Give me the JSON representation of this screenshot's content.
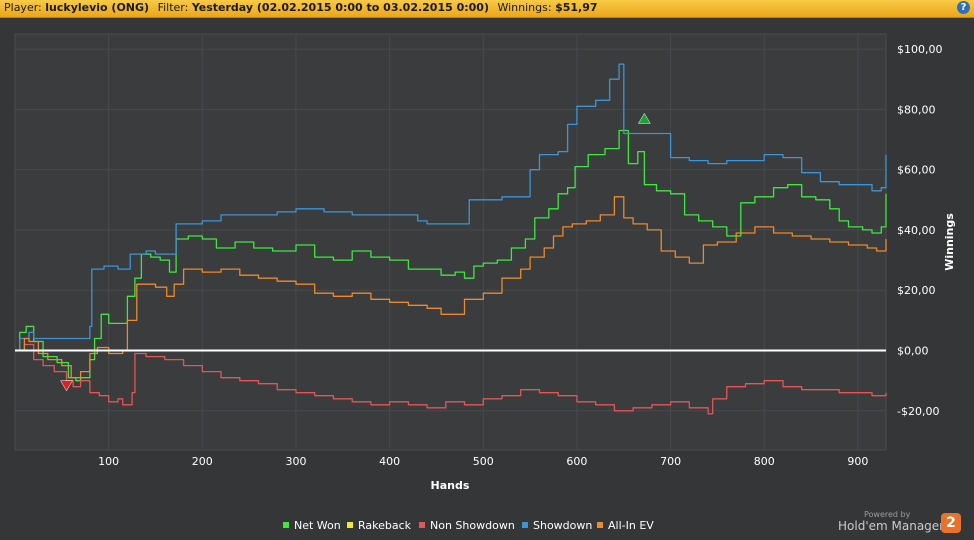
{
  "header": {
    "player_label": "Player:",
    "player_value": "luckylevio (ONG)",
    "filter_label": "Filter:",
    "filter_value": "Yesterday (02.02.2015 0:00 to 03.02.2015 0:00)",
    "winnings_label": "Winnings:",
    "winnings_value": "$51,97",
    "help_glyph": "?"
  },
  "footer": {
    "powered_by": "Powered by",
    "brand": "Hold'em Manager",
    "badge": "2"
  },
  "chart_data": {
    "type": "line",
    "xlabel": "Hands",
    "ylabel": "Winnings",
    "xlim": [
      0,
      930
    ],
    "ylim": [
      -33,
      105
    ],
    "x_ticks": [
      100,
      200,
      300,
      400,
      500,
      600,
      700,
      800,
      900
    ],
    "y_ticks": [
      {
        "value": -20,
        "label": "-$20,00"
      },
      {
        "value": 0,
        "label": "$0,00"
      },
      {
        "value": 20,
        "label": "$20,00"
      },
      {
        "value": 40,
        "label": "$40,00"
      },
      {
        "value": 60,
        "label": "$60,00"
      },
      {
        "value": 80,
        "label": "$80,00"
      },
      {
        "value": 100,
        "label": "$100,00"
      }
    ],
    "grid": true,
    "legend_position": "bottom-center",
    "series": [
      {
        "name": "Net Won",
        "color": "#3fe83f",
        "points": [
          [
            0,
            0
          ],
          [
            5,
            6
          ],
          [
            12,
            8
          ],
          [
            20,
            3
          ],
          [
            30,
            -2
          ],
          [
            45,
            -4
          ],
          [
            57,
            -9
          ],
          [
            65,
            -10
          ],
          [
            70,
            -9
          ],
          [
            80,
            -3
          ],
          [
            85,
            4
          ],
          [
            92,
            12
          ],
          [
            100,
            9
          ],
          [
            110,
            9
          ],
          [
            120,
            18
          ],
          [
            128,
            24
          ],
          [
            135,
            32
          ],
          [
            145,
            31
          ],
          [
            155,
            30
          ],
          [
            165,
            26
          ],
          [
            172,
            37
          ],
          [
            185,
            38
          ],
          [
            200,
            37
          ],
          [
            215,
            34
          ],
          [
            235,
            36
          ],
          [
            255,
            34
          ],
          [
            275,
            33
          ],
          [
            300,
            35
          ],
          [
            320,
            31
          ],
          [
            340,
            30
          ],
          [
            360,
            33
          ],
          [
            380,
            31
          ],
          [
            400,
            30
          ],
          [
            420,
            27
          ],
          [
            440,
            27
          ],
          [
            455,
            25
          ],
          [
            470,
            26
          ],
          [
            480,
            24
          ],
          [
            490,
            28
          ],
          [
            500,
            29
          ],
          [
            515,
            30
          ],
          [
            530,
            34
          ],
          [
            545,
            37
          ],
          [
            555,
            44
          ],
          [
            570,
            47
          ],
          [
            580,
            52
          ],
          [
            590,
            54
          ],
          [
            598,
            61
          ],
          [
            612,
            65
          ],
          [
            630,
            67
          ],
          [
            645,
            73
          ],
          [
            655,
            62
          ],
          [
            665,
            66
          ],
          [
            672,
            55
          ],
          [
            685,
            53
          ],
          [
            700,
            52
          ],
          [
            715,
            45
          ],
          [
            730,
            43
          ],
          [
            745,
            41
          ],
          [
            760,
            38
          ],
          [
            775,
            49
          ],
          [
            790,
            51
          ],
          [
            810,
            54
          ],
          [
            825,
            55
          ],
          [
            840,
            51
          ],
          [
            855,
            50
          ],
          [
            870,
            47
          ],
          [
            880,
            43
          ],
          [
            890,
            41
          ],
          [
            905,
            40
          ],
          [
            915,
            39
          ],
          [
            925,
            41
          ],
          [
            930,
            52
          ]
        ]
      },
      {
        "name": "Rakeback",
        "color": "#f0ea2a",
        "points": []
      },
      {
        "name": "Non Showdown",
        "color": "#e25658",
        "points": [
          [
            0,
            0
          ],
          [
            10,
            2
          ],
          [
            20,
            -3
          ],
          [
            30,
            -5
          ],
          [
            42,
            -7
          ],
          [
            55,
            -10
          ],
          [
            62,
            -12
          ],
          [
            70,
            -10
          ],
          [
            80,
            -14
          ],
          [
            90,
            -15
          ],
          [
            100,
            -17
          ],
          [
            110,
            -16
          ],
          [
            115,
            -18
          ],
          [
            125,
            -14
          ],
          [
            128,
            -1
          ],
          [
            140,
            -2
          ],
          [
            160,
            -3
          ],
          [
            180,
            -5
          ],
          [
            200,
            -7
          ],
          [
            220,
            -9
          ],
          [
            240,
            -10
          ],
          [
            260,
            -11
          ],
          [
            280,
            -13
          ],
          [
            300,
            -14
          ],
          [
            320,
            -15
          ],
          [
            340,
            -16
          ],
          [
            360,
            -17
          ],
          [
            380,
            -18
          ],
          [
            400,
            -17
          ],
          [
            420,
            -18
          ],
          [
            440,
            -19
          ],
          [
            460,
            -17
          ],
          [
            480,
            -18
          ],
          [
            500,
            -16
          ],
          [
            520,
            -15
          ],
          [
            540,
            -13
          ],
          [
            560,
            -14
          ],
          [
            580,
            -15
          ],
          [
            600,
            -17
          ],
          [
            620,
            -18
          ],
          [
            640,
            -20
          ],
          [
            660,
            -19
          ],
          [
            680,
            -18
          ],
          [
            700,
            -17
          ],
          [
            720,
            -19
          ],
          [
            740,
            -21
          ],
          [
            745,
            -16
          ],
          [
            760,
            -12
          ],
          [
            780,
            -11
          ],
          [
            800,
            -10
          ],
          [
            820,
            -12
          ],
          [
            840,
            -13
          ],
          [
            860,
            -13
          ],
          [
            880,
            -14
          ],
          [
            900,
            -14
          ],
          [
            915,
            -15
          ],
          [
            930,
            -14
          ]
        ]
      },
      {
        "name": "Showdown",
        "color": "#3d94d6",
        "points": [
          [
            0,
            0
          ],
          [
            5,
            4
          ],
          [
            15,
            6
          ],
          [
            20,
            4
          ],
          [
            40,
            4
          ],
          [
            60,
            4
          ],
          [
            70,
            4
          ],
          [
            80,
            8
          ],
          [
            82,
            27
          ],
          [
            95,
            28
          ],
          [
            110,
            27
          ],
          [
            120,
            27
          ],
          [
            123,
            32
          ],
          [
            140,
            33
          ],
          [
            150,
            32
          ],
          [
            165,
            32
          ],
          [
            172,
            42
          ],
          [
            200,
            43
          ],
          [
            220,
            45
          ],
          [
            250,
            45
          ],
          [
            280,
            46
          ],
          [
            300,
            47
          ],
          [
            330,
            46
          ],
          [
            360,
            45
          ],
          [
            400,
            45
          ],
          [
            430,
            43
          ],
          [
            440,
            42
          ],
          [
            460,
            42
          ],
          [
            480,
            42
          ],
          [
            485,
            50
          ],
          [
            520,
            51
          ],
          [
            540,
            51
          ],
          [
            550,
            60
          ],
          [
            560,
            65
          ],
          [
            580,
            66
          ],
          [
            590,
            75
          ],
          [
            600,
            81
          ],
          [
            610,
            81
          ],
          [
            620,
            83
          ],
          [
            635,
            90
          ],
          [
            645,
            95
          ],
          [
            650,
            72
          ],
          [
            665,
            72
          ],
          [
            690,
            72
          ],
          [
            700,
            64
          ],
          [
            720,
            63
          ],
          [
            740,
            62
          ],
          [
            760,
            63
          ],
          [
            780,
            63
          ],
          [
            800,
            65
          ],
          [
            820,
            64
          ],
          [
            840,
            59
          ],
          [
            860,
            56
          ],
          [
            880,
            55
          ],
          [
            900,
            55
          ],
          [
            915,
            53
          ],
          [
            925,
            54
          ],
          [
            930,
            65
          ]
        ]
      },
      {
        "name": "All-In EV",
        "color": "#ec8a2c",
        "points": [
          [
            0,
            0
          ],
          [
            10,
            4
          ],
          [
            15,
            3
          ],
          [
            25,
            -1
          ],
          [
            35,
            -3
          ],
          [
            50,
            -5
          ],
          [
            60,
            -9
          ],
          [
            70,
            -7
          ],
          [
            80,
            -1
          ],
          [
            88,
            1
          ],
          [
            100,
            -1
          ],
          [
            115,
            0
          ],
          [
            120,
            10
          ],
          [
            130,
            22
          ],
          [
            150,
            21
          ],
          [
            162,
            18
          ],
          [
            170,
            22
          ],
          [
            180,
            27
          ],
          [
            200,
            26
          ],
          [
            220,
            27
          ],
          [
            240,
            25
          ],
          [
            260,
            24
          ],
          [
            280,
            23
          ],
          [
            300,
            22
          ],
          [
            320,
            19
          ],
          [
            340,
            18
          ],
          [
            360,
            19
          ],
          [
            380,
            17
          ],
          [
            400,
            16
          ],
          [
            420,
            15
          ],
          [
            440,
            14
          ],
          [
            455,
            12
          ],
          [
            475,
            12
          ],
          [
            480,
            17
          ],
          [
            500,
            19
          ],
          [
            520,
            24
          ],
          [
            540,
            27
          ],
          [
            550,
            31
          ],
          [
            565,
            34
          ],
          [
            575,
            38
          ],
          [
            585,
            41
          ],
          [
            595,
            42
          ],
          [
            610,
            43
          ],
          [
            625,
            45
          ],
          [
            640,
            51
          ],
          [
            650,
            44
          ],
          [
            660,
            42
          ],
          [
            675,
            40
          ],
          [
            690,
            33
          ],
          [
            705,
            31
          ],
          [
            720,
            29
          ],
          [
            735,
            35
          ],
          [
            750,
            36
          ],
          [
            770,
            39
          ],
          [
            790,
            41
          ],
          [
            810,
            39
          ],
          [
            830,
            38
          ],
          [
            850,
            37
          ],
          [
            870,
            36
          ],
          [
            890,
            35
          ],
          [
            910,
            34
          ],
          [
            920,
            33
          ],
          [
            930,
            37
          ]
        ]
      },
      {
        "name": "Zero line",
        "color": "#ffffff",
        "points": [
          [
            0,
            0
          ],
          [
            930,
            0
          ]
        ]
      }
    ],
    "markers": [
      {
        "type": "min",
        "series": "Non Showdown",
        "x": 55,
        "y": -12,
        "color": "#e02020"
      },
      {
        "type": "max",
        "series": "Net Won",
        "x": 672,
        "y": 77,
        "color": "#1fa03c"
      }
    ]
  }
}
